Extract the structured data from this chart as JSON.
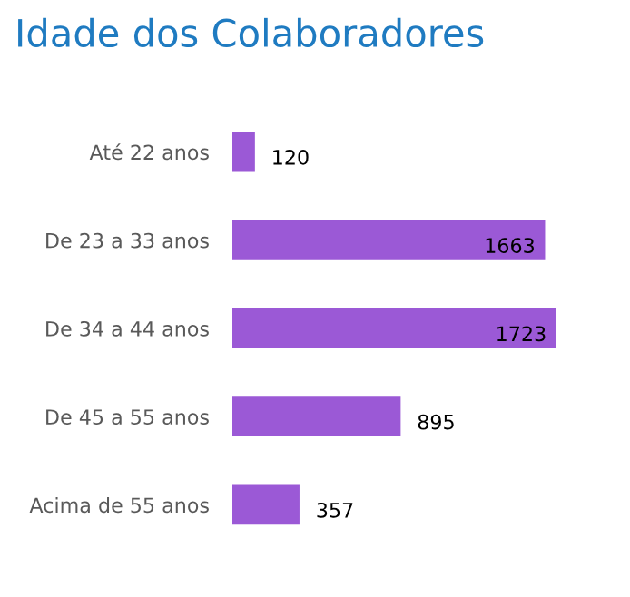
{
  "chart_data": {
    "type": "bar",
    "orientation": "horizontal",
    "title": "Idade dos Colaboradores",
    "categories": [
      "Até 22 anos",
      "De 23 a 33 anos",
      "De 34 a 44 anos",
      "De 45 a 55 anos",
      "Acima de 55 anos"
    ],
    "values": [
      120,
      1663,
      1723,
      895,
      357
    ],
    "color": "#9b59d6",
    "data_labels": true,
    "grid": false,
    "legend": false
  }
}
